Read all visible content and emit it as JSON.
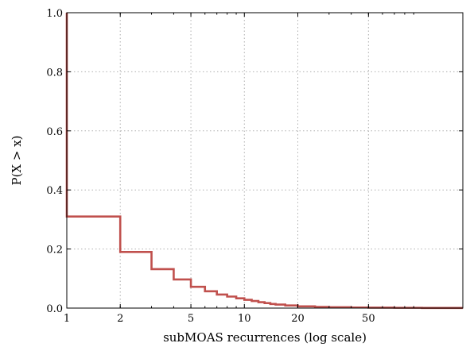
{
  "chart_data": {
    "type": "line",
    "drawstyle": "steps-post",
    "title": "",
    "xlabel": "subMOAS recurrences (log scale)",
    "ylabel": "P(X > x)",
    "xscale": "log",
    "xlim": [
      1,
      170
    ],
    "ylim": [
      0.0,
      1.0
    ],
    "grid": true,
    "x_ticks": [
      1,
      2,
      5,
      10,
      20,
      50
    ],
    "x_tick_labels": [
      "1",
      "2",
      "5",
      "10",
      "20",
      "50"
    ],
    "y_ticks": [
      0.0,
      0.2,
      0.4,
      0.6,
      0.8,
      1.0
    ],
    "y_tick_labels": [
      "0.0",
      "0.2",
      "0.4",
      "0.6",
      "0.8",
      "1.0"
    ],
    "series": [
      {
        "color": "#c0504d",
        "x": [
          1,
          1,
          2,
          3,
          4,
          5,
          6,
          7,
          8,
          9,
          10,
          11,
          12,
          13,
          14,
          15,
          17,
          20,
          25,
          30,
          40,
          50,
          70,
          100,
          170
        ],
        "y": [
          1.0,
          0.31,
          0.19,
          0.132,
          0.097,
          0.072,
          0.057,
          0.046,
          0.039,
          0.033,
          0.028,
          0.024,
          0.02,
          0.017,
          0.014,
          0.012,
          0.009,
          0.006,
          0.004,
          0.003,
          0.002,
          0.0015,
          0.001,
          0.0005,
          0.0005
        ]
      }
    ]
  }
}
